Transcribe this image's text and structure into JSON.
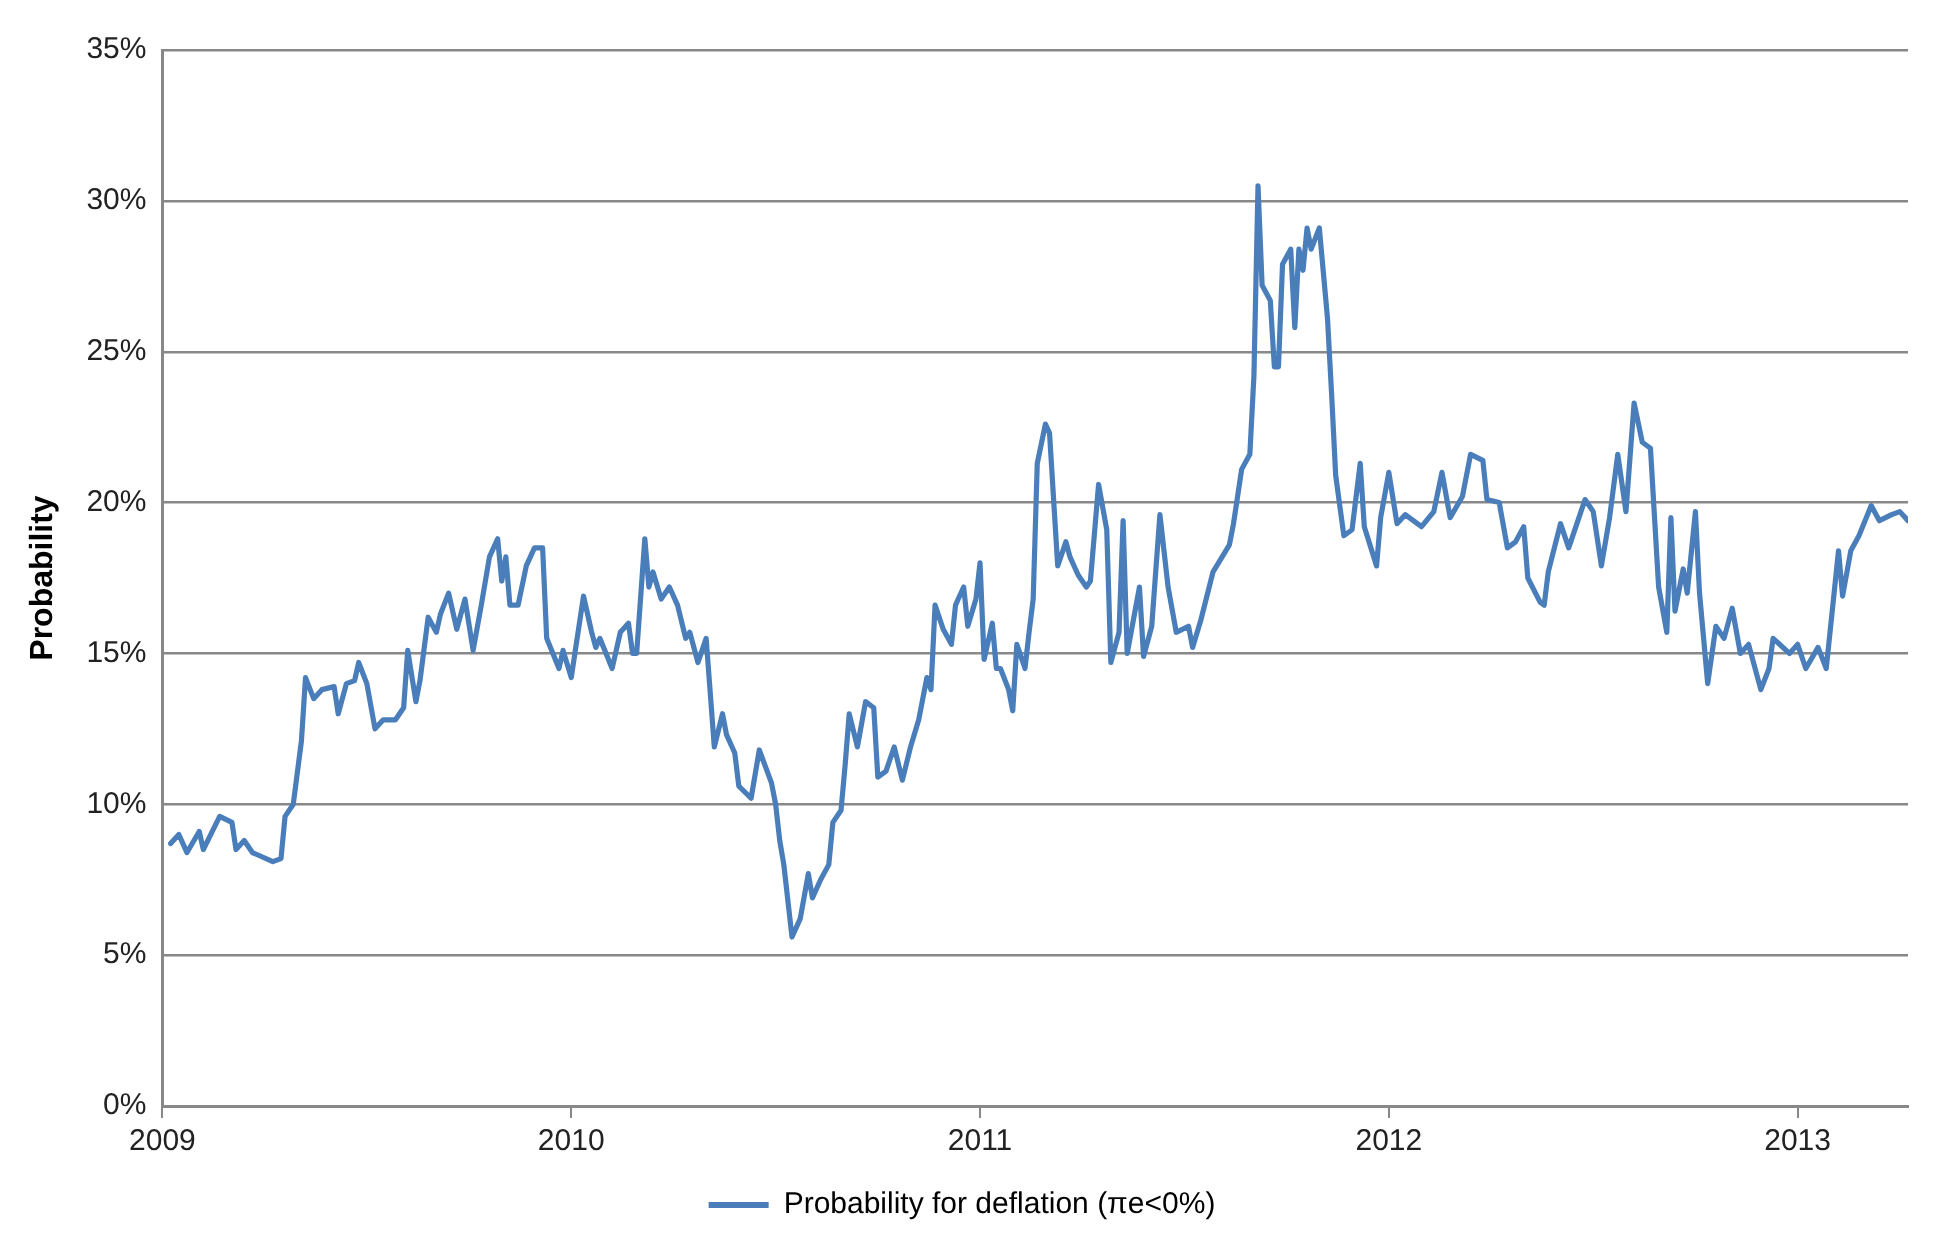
{
  "chart_data": {
    "type": "line",
    "ylabel": "Probability",
    "grid": "y",
    "legend": "bottom",
    "marker": "none",
    "line_style": "solid",
    "xlim": [
      2009,
      2013.27
    ],
    "xticks": [
      2009,
      2010,
      2011,
      2012,
      2013
    ],
    "ylim": [
      0,
      35
    ],
    "yticks": [
      {
        "value": 0,
        "label": "0%"
      },
      {
        "value": 5,
        "label": "5%"
      },
      {
        "value": 10,
        "label": "10%"
      },
      {
        "value": 15,
        "label": "15%"
      },
      {
        "value": 20,
        "label": "20%"
      },
      {
        "value": 25,
        "label": "25%"
      },
      {
        "value": 30,
        "label": "30%"
      },
      {
        "value": 35,
        "label": "35%"
      }
    ],
    "x": [
      2009.02,
      2009.04,
      2009.06,
      2009.09,
      2009.1,
      2009.14,
      2009.17,
      2009.18,
      2009.2,
      2009.22,
      2009.27,
      2009.29,
      2009.3,
      2009.32,
      2009.34,
      2009.35,
      2009.37,
      2009.39,
      2009.42,
      2009.43,
      2009.45,
      2009.47,
      2009.48,
      2009.5,
      2009.52,
      2009.54,
      2009.57,
      2009.59,
      2009.6,
      2009.62,
      2009.63,
      2009.65,
      2009.67,
      2009.68,
      2009.7,
      2009.72,
      2009.74,
      2009.76,
      2009.78,
      2009.8,
      2009.82,
      2009.83,
      2009.84,
      2009.85,
      2009.87,
      2009.89,
      2009.91,
      2009.93,
      2009.94,
      2009.97,
      2009.98,
      2010.0,
      2010.03,
      2010.05,
      2010.06,
      2010.07,
      2010.1,
      2010.12,
      2010.14,
      2010.15,
      2010.16,
      2010.18,
      2010.19,
      2010.2,
      2010.22,
      2010.24,
      2010.26,
      2010.28,
      2010.29,
      2010.31,
      2010.33,
      2010.35,
      2010.37,
      2010.38,
      2010.4,
      2010.41,
      2010.44,
      2010.46,
      2010.49,
      2010.5,
      2010.51,
      2010.52,
      2010.54,
      2010.56,
      2010.58,
      2010.59,
      2010.61,
      2010.63,
      2010.64,
      2010.66,
      2010.67,
      2010.68,
      2010.7,
      2010.72,
      2010.74,
      2010.75,
      2010.77,
      2010.79,
      2010.81,
      2010.83,
      2010.85,
      2010.87,
      2010.88,
      2010.89,
      2010.91,
      2010.93,
      2010.94,
      2010.96,
      2010.97,
      2010.99,
      2011.0,
      2011.01,
      2011.03,
      2011.04,
      2011.05,
      2011.07,
      2011.08,
      2011.09,
      2011.11,
      2011.12,
      2011.13,
      2011.14,
      2011.16,
      2011.17,
      2011.19,
      2011.21,
      2011.22,
      2011.24,
      2011.26,
      2011.27,
      2011.29,
      2011.31,
      2011.32,
      2011.34,
      2011.35,
      2011.36,
      2011.39,
      2011.4,
      2011.42,
      2011.44,
      2011.46,
      2011.48,
      2011.51,
      2011.52,
      2011.54,
      2011.57,
      2011.61,
      2011.62,
      2011.64,
      2011.66,
      2011.67,
      2011.68,
      2011.69,
      2011.71,
      2011.72,
      2011.73,
      2011.74,
      2011.76,
      2011.77,
      2011.78,
      2011.79,
      2011.8,
      2011.81,
      2011.83,
      2011.85,
      2011.86,
      2011.87,
      2011.89,
      2011.91,
      2011.93,
      2011.94,
      2011.97,
      2011.98,
      2012.0,
      2012.02,
      2012.04,
      2012.08,
      2012.11,
      2012.13,
      2012.15,
      2012.18,
      2012.2,
      2012.23,
      2012.24,
      2012.27,
      2012.29,
      2012.31,
      2012.33,
      2012.34,
      2012.37,
      2012.38,
      2012.39,
      2012.42,
      2012.44,
      2012.48,
      2012.5,
      2012.52,
      2012.54,
      2012.56,
      2012.58,
      2012.6,
      2012.62,
      2012.64,
      2012.66,
      2012.68,
      2012.69,
      2012.7,
      2012.72,
      2012.73,
      2012.75,
      2012.76,
      2012.78,
      2012.8,
      2012.82,
      2012.84,
      2012.86,
      2012.88,
      2012.91,
      2012.93,
      2012.94,
      2012.98,
      2013.0,
      2013.02,
      2013.05,
      2013.07,
      2013.1,
      2013.11,
      2013.13,
      2013.15,
      2013.18,
      2013.2,
      2013.23,
      2013.25,
      2013.27
    ],
    "series": [
      {
        "name": "Probability for deflation (πe<0%)",
        "color": "#4a7ebb",
        "values": [
          8.7,
          9.0,
          8.4,
          9.1,
          8.5,
          9.6,
          9.4,
          8.5,
          8.8,
          8.4,
          8.1,
          8.2,
          9.6,
          10.0,
          12.1,
          14.2,
          13.5,
          13.8,
          13.9,
          13.0,
          14.0,
          14.1,
          14.7,
          14.0,
          12.5,
          12.8,
          12.8,
          13.2,
          15.1,
          13.4,
          14.1,
          16.2,
          15.7,
          16.3,
          17.0,
          15.8,
          16.8,
          15.1,
          16.6,
          18.2,
          18.8,
          17.4,
          18.2,
          16.6,
          16.6,
          17.9,
          18.5,
          18.5,
          15.5,
          14.5,
          15.1,
          14.2,
          16.9,
          15.7,
          15.2,
          15.5,
          14.5,
          15.7,
          16.0,
          15.0,
          15.0,
          18.8,
          17.2,
          17.7,
          16.8,
          17.2,
          16.6,
          15.5,
          15.7,
          14.7,
          15.5,
          11.9,
          13.0,
          12.3,
          11.7,
          10.6,
          10.2,
          11.8,
          10.7,
          10.0,
          8.8,
          8.0,
          5.6,
          6.2,
          7.7,
          6.9,
          7.5,
          8.0,
          9.4,
          9.8,
          11.3,
          13.0,
          11.9,
          13.4,
          13.2,
          10.9,
          11.1,
          11.9,
          10.8,
          11.9,
          12.8,
          14.2,
          13.8,
          16.6,
          15.8,
          15.3,
          16.6,
          17.2,
          15.9,
          16.8,
          18.0,
          14.8,
          16.0,
          14.5,
          14.5,
          13.8,
          13.1,
          15.3,
          14.5,
          15.7,
          16.8,
          21.3,
          22.6,
          22.3,
          17.9,
          18.7,
          18.2,
          17.6,
          17.2,
          17.4,
          20.6,
          19.1,
          14.7,
          15.7,
          19.4,
          15.0,
          17.2,
          14.9,
          15.9,
          19.6,
          17.2,
          15.7,
          15.9,
          15.2,
          16.1,
          17.7,
          18.6,
          19.3,
          21.1,
          21.6,
          24.2,
          30.5,
          27.2,
          26.7,
          24.5,
          24.5,
          27.9,
          28.4,
          25.8,
          28.4,
          27.7,
          29.1,
          28.4,
          29.1,
          26.1,
          23.6,
          20.9,
          18.9,
          19.1,
          21.3,
          19.2,
          17.9,
          19.5,
          21.0,
          19.3,
          19.6,
          19.2,
          19.7,
          21.0,
          19.5,
          20.2,
          21.6,
          21.4,
          20.1,
          20.0,
          18.5,
          18.7,
          19.2,
          17.5,
          16.7,
          16.6,
          17.7,
          19.3,
          18.5,
          20.1,
          19.7,
          17.9,
          19.5,
          21.6,
          19.7,
          23.3,
          22.0,
          21.8,
          17.2,
          15.7,
          19.5,
          16.4,
          17.8,
          17.0,
          19.7,
          17.0,
          14.0,
          15.9,
          15.5,
          16.5,
          15.0,
          15.3,
          13.8,
          14.5,
          15.5,
          15.0,
          15.3,
          14.5,
          15.2,
          14.5,
          18.4,
          16.9,
          18.4,
          18.9,
          19.9,
          19.4,
          19.6,
          19.7,
          19.4
        ]
      }
    ]
  }
}
